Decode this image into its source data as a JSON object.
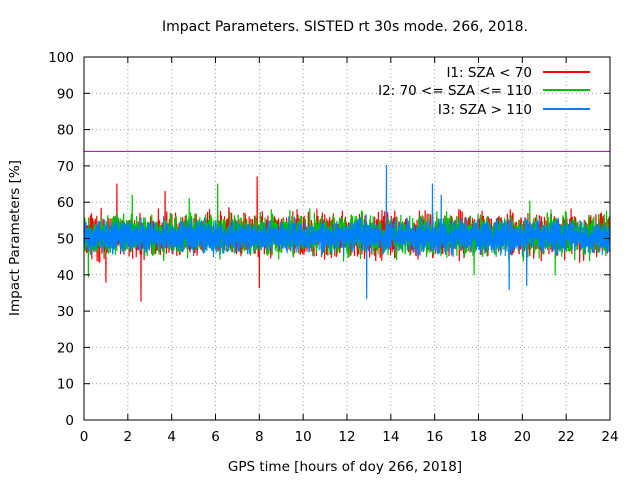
{
  "chart_data": {
    "type": "line",
    "title": "Impact Parameters. SISTED rt 30s mode. 266, 2018.",
    "xlabel": "GPS time [hours of doy 266, 2018]",
    "ylabel": "Impact Parameters [%]",
    "xlim": [
      0,
      24
    ],
    "ylim": [
      0,
      100
    ],
    "xticks": [
      0,
      2,
      4,
      6,
      8,
      10,
      12,
      14,
      16,
      18,
      20,
      22,
      24
    ],
    "yticks": [
      0,
      10,
      20,
      30,
      40,
      50,
      60,
      70,
      80,
      90,
      100
    ],
    "grid": true,
    "legend_position": "top-right",
    "threshold": {
      "value": 74,
      "color": "#9400d3"
    },
    "series": [
      {
        "name": "I1: SZA < 70",
        "color": "#ff0000",
        "center": 51,
        "typical_range": [
          43,
          60
        ],
        "extremes": [
          {
            "x": 2.6,
            "y": 32.7
          },
          {
            "x": 1.5,
            "y": 65.0
          },
          {
            "x": 1.0,
            "y": 38.0
          },
          {
            "x": 7.9,
            "y": 67.0
          },
          {
            "x": 8.0,
            "y": 36.5
          },
          {
            "x": 3.7,
            "y": 63.0
          }
        ]
      },
      {
        "name": "I2: 70 <= SZA <= 110",
        "color": "#00c000",
        "center": 51,
        "typical_range": [
          43,
          59
        ],
        "extremes": [
          {
            "x": 6.1,
            "y": 65.0
          },
          {
            "x": 0.2,
            "y": 39.5
          },
          {
            "x": 2.2,
            "y": 62.0
          },
          {
            "x": 4.8,
            "y": 61.0
          },
          {
            "x": 17.8,
            "y": 40.0
          },
          {
            "x": 21.5,
            "y": 40.0
          }
        ]
      },
      {
        "name": "I3: SZA > 110",
        "color": "#0080ff",
        "center": 50.5,
        "typical_range": [
          44,
          57
        ],
        "extremes": [
          {
            "x": 13.8,
            "y": 70.2
          },
          {
            "x": 12.9,
            "y": 33.5
          },
          {
            "x": 15.9,
            "y": 65.0
          },
          {
            "x": 19.4,
            "y": 36.0
          },
          {
            "x": 16.3,
            "y": 62.0
          },
          {
            "x": 20.2,
            "y": 37.0
          }
        ]
      }
    ]
  }
}
